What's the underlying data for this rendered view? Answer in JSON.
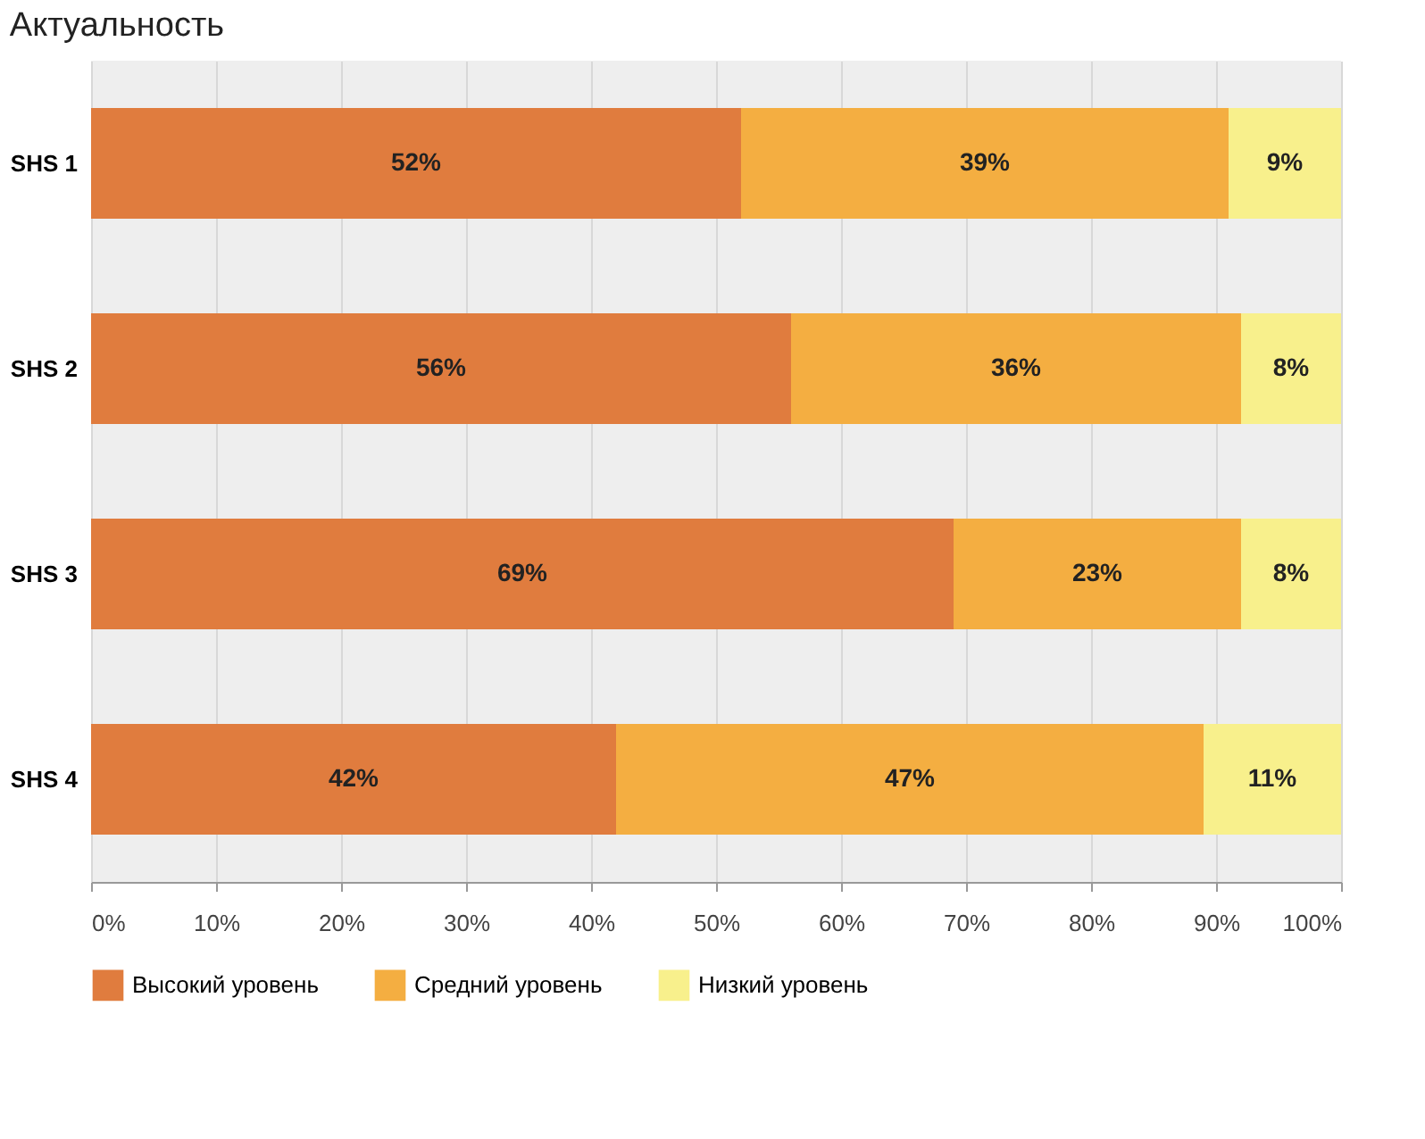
{
  "chart_data": {
    "type": "bar",
    "title": "Актуальность",
    "orientation": "horizontal",
    "stacked": true,
    "categories": [
      "SHS 1",
      "SHS 2",
      "SHS 3",
      "SHS 4"
    ],
    "series": [
      {
        "name": "Высокий уровень",
        "color": "#e07c3e",
        "values": [
          52,
          56,
          69,
          42
        ],
        "value_labels": [
          "52%",
          "56%",
          "69%",
          "42%"
        ]
      },
      {
        "name": "Средний уровень",
        "color": "#f4ae41",
        "values": [
          39,
          36,
          23,
          47
        ],
        "value_labels": [
          "39%",
          "36%",
          "23%",
          "47%"
        ]
      },
      {
        "name": "Низкий уровень",
        "color": "#f8f08c",
        "values": [
          9,
          8,
          8,
          11
        ],
        "value_labels": [
          "9%",
          "8%",
          "8%",
          "11%"
        ]
      }
    ],
    "xlim": [
      0,
      100
    ],
    "xticks": [
      {
        "value": 0,
        "label": "0%"
      },
      {
        "value": 10,
        "label": "10%"
      },
      {
        "value": 20,
        "label": "20%"
      },
      {
        "value": 30,
        "label": "30%"
      },
      {
        "value": 40,
        "label": "40%"
      },
      {
        "value": 50,
        "label": "50%"
      },
      {
        "value": 60,
        "label": "60%"
      },
      {
        "value": 70,
        "label": "70%"
      },
      {
        "value": 80,
        "label": "80%"
      },
      {
        "value": 90,
        "label": "90%"
      },
      {
        "value": 100,
        "label": "100%"
      }
    ],
    "grid": "x",
    "legend": "bottom"
  }
}
